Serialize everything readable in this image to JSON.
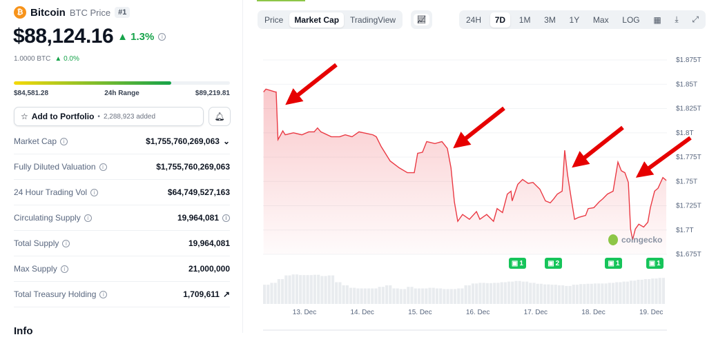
{
  "coin": {
    "icon": "bitcoin-icon",
    "name": "Bitcoin",
    "label": "BTC Price",
    "rank": "#1",
    "price": "$88,124.16",
    "change": "1.3%",
    "btc_value": "1.0000 BTC",
    "btc_change": "0.0%"
  },
  "range": {
    "low": "$84,581.28",
    "label": "24h Range",
    "high": "$89,219.81",
    "position_fraction": 0.73
  },
  "portfolio": {
    "label": "Add to Portfolio",
    "added": "2,288,923 added"
  },
  "stats": [
    {
      "label": "Market Cap",
      "value": "$1,755,760,269,063",
      "extra": "chevron-down"
    },
    {
      "label": "Fully Diluted Valuation",
      "value": "$1,755,760,269,063"
    },
    {
      "label": "24 Hour Trading Vol",
      "value": "$64,749,527,163"
    },
    {
      "label": "Circulating Supply",
      "value": "19,964,081",
      "extra": "info"
    },
    {
      "label": "Total Supply",
      "value": "19,964,081"
    },
    {
      "label": "Max Supply",
      "value": "21,000,000"
    },
    {
      "label": "Total Treasury Holding",
      "value": "1,709,611",
      "extra": "external-link"
    }
  ],
  "info_heading": "Info",
  "chart_tabs": [
    "Price",
    "Market Cap",
    "TradingView"
  ],
  "active_chart_tab": "Market Cap",
  "ranges": [
    "24H",
    "7D",
    "1M",
    "3M",
    "1Y",
    "Max",
    "LOG"
  ],
  "active_range": "7D",
  "watermark": "coingecko",
  "colors": {
    "line": "#ea3943",
    "up": "#16a34a",
    "news": "#16c45a",
    "arrow": "#e60000"
  },
  "news_badges": [
    {
      "count": "1",
      "time": "16 Dec 16:00"
    },
    {
      "count": "2",
      "time": "17 Dec 07:00"
    },
    {
      "count": "1",
      "time": "18 Dec 08:00"
    },
    {
      "count": "1",
      "time": "19 Dec 01:00"
    }
  ],
  "chart_data": {
    "type": "area",
    "y_ticks": [
      "$1.875T",
      "$1.85T",
      "$1.825T",
      "$1.8T",
      "$1.775T",
      "$1.75T",
      "$1.725T",
      "$1.7T",
      "$1.675T"
    ],
    "ylim": [
      1.675,
      1.875
    ],
    "x_ticks": [
      "13. Dec",
      "14. Dec",
      "15. Dec",
      "16. Dec",
      "17. Dec",
      "18. Dec",
      "19. Dec"
    ],
    "grid": true,
    "unit": "USD trillions",
    "points": [
      [
        "12 Dec 07:00",
        1.842
      ],
      [
        "12 Dec 08:00",
        1.845
      ],
      [
        "12 Dec 12:00",
        1.842
      ],
      [
        "12 Dec 12:15",
        1.842
      ],
      [
        "12 Dec 13:00",
        1.793
      ],
      [
        "12 Dec 13:40",
        1.796
      ],
      [
        "12 Dec 15:00",
        1.802
      ],
      [
        "12 Dec 16:00",
        1.798
      ],
      [
        "12 Dec 19:25",
        1.8
      ],
      [
        "12 Dec 22:55",
        1.798
      ],
      [
        "13 Dec 01:45",
        1.801
      ],
      [
        "13 Dec 04:00",
        1.801
      ],
      [
        "13 Dec 05:25",
        1.805
      ],
      [
        "13 Dec 06:50",
        1.801
      ],
      [
        "13 Dec 11:10",
        1.796
      ],
      [
        "13 Dec 14:35",
        1.796
      ],
      [
        "13 Dec 16:55",
        1.798
      ],
      [
        "13 Dec 19:45",
        1.796
      ],
      [
        "13 Dec 22:40",
        1.801
      ],
      [
        "14 Dec 04:25",
        1.798
      ],
      [
        "14 Dec 05:50",
        1.796
      ],
      [
        "14 Dec 07:50",
        1.786
      ],
      [
        "14 Dec 11:35",
        1.771
      ],
      [
        "14 Dec 15:20",
        1.764
      ],
      [
        "14 Dec 18:45",
        1.759
      ],
      [
        "14 Dec 21:35",
        1.759
      ],
      [
        "14 Dec 23:00",
        1.779
      ],
      [
        "15 Dec 01:00",
        1.78
      ],
      [
        "15 Dec 02:45",
        1.791
      ],
      [
        "15 Dec 06:10",
        1.789
      ],
      [
        "15 Dec 09:05",
        1.791
      ],
      [
        "15 Dec 11:20",
        1.784
      ],
      [
        "15 Dec 12:50",
        1.764
      ],
      [
        "15 Dec 14:15",
        1.729
      ],
      [
        "15 Dec 15:40",
        1.709
      ],
      [
        "15 Dec 17:40",
        1.716
      ],
      [
        "15 Dec 20:30",
        1.711
      ],
      [
        "15 Dec 23:25",
        1.719
      ],
      [
        "16 Dec 00:50",
        1.711
      ],
      [
        "16 Dec 03:40",
        1.716
      ],
      [
        "16 Dec 06:30",
        1.709
      ],
      [
        "16 Dec 08:00",
        1.722
      ],
      [
        "16 Dec 10:15",
        1.718
      ],
      [
        "16 Dec 12:15",
        1.737
      ],
      [
        "16 Dec 13:45",
        1.74
      ],
      [
        "16 Dec 14:15",
        1.73
      ],
      [
        "16 Dec 16:35",
        1.747
      ],
      [
        "16 Dec 18:35",
        1.752
      ],
      [
        "16 Dec 20:55",
        1.748
      ],
      [
        "16 Dec 22:55",
        1.749
      ],
      [
        "17 Dec 01:45",
        1.742
      ],
      [
        "17 Dec 04:05",
        1.73
      ],
      [
        "17 Dec 06:05",
        1.728
      ],
      [
        "17 Dec 07:30",
        1.732
      ],
      [
        "17 Dec 09:00",
        1.737
      ],
      [
        "17 Dec 11:00",
        1.74
      ],
      [
        "17 Dec 12:05",
        1.782
      ],
      [
        "17 Dec 13:15",
        1.757
      ],
      [
        "17 Dec 15:00",
        1.729
      ],
      [
        "17 Dec 16:10",
        1.711
      ],
      [
        "17 Dec 17:50",
        1.713
      ],
      [
        "17 Dec 20:45",
        1.715
      ],
      [
        "17 Dec 21:50",
        1.722
      ],
      [
        "18 Dec 00:10",
        1.723
      ],
      [
        "18 Dec 02:25",
        1.729
      ],
      [
        "18 Dec 03:50",
        1.732
      ],
      [
        "18 Dec 05:50",
        1.737
      ],
      [
        "18 Dec 08:10",
        1.74
      ],
      [
        "18 Dec 10:10",
        1.77
      ],
      [
        "18 Dec 11:35",
        1.761
      ],
      [
        "18 Dec 13:05",
        1.759
      ],
      [
        "18 Dec 14:30",
        1.749
      ],
      [
        "18 Dec 15:25",
        1.701
      ],
      [
        "18 Dec 16:15",
        1.69
      ],
      [
        "18 Dec 17:25",
        1.701
      ],
      [
        "18 Dec 18:50",
        1.706
      ],
      [
        "18 Dec 20:50",
        1.703
      ],
      [
        "18 Dec 22:35",
        1.708
      ],
      [
        "18 Dec 23:40",
        1.723
      ],
      [
        "19 Dec 01:25",
        1.74
      ],
      [
        "19 Dec 02:50",
        1.743
      ],
      [
        "19 Dec 04:50",
        1.754
      ],
      [
        "19 Dec 06:15",
        1.751
      ]
    ],
    "volume_relative": [
      0.62,
      0.68,
      0.8,
      0.92,
      0.95,
      0.93,
      0.93,
      0.94,
      0.9,
      0.92,
      0.7,
      0.6,
      0.52,
      0.5,
      0.5,
      0.5,
      0.55,
      0.6,
      0.5,
      0.48,
      0.55,
      0.5,
      0.5,
      0.52,
      0.5,
      0.48,
      0.48,
      0.5,
      0.6,
      0.66,
      0.68,
      0.67,
      0.68,
      0.7,
      0.72,
      0.74,
      0.72,
      0.68,
      0.65,
      0.63,
      0.62,
      0.6,
      0.58,
      0.62,
      0.64,
      0.65,
      0.66,
      0.66,
      0.68,
      0.7,
      0.72,
      0.75,
      0.78,
      0.8,
      0.82,
      0.84
    ]
  }
}
